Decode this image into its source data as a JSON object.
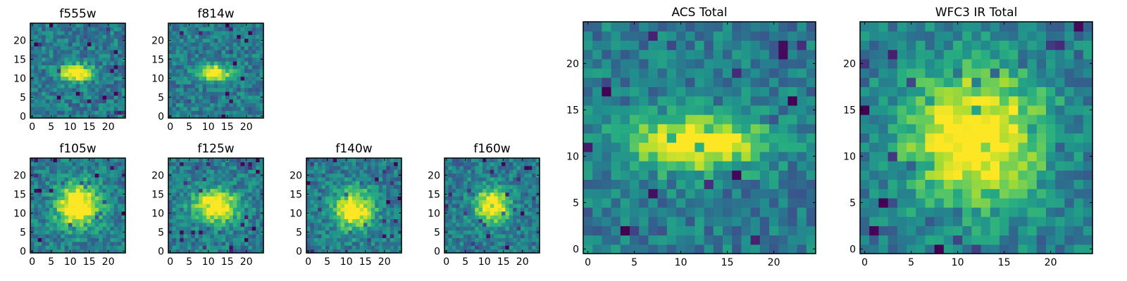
{
  "chart_data": [
    {
      "type": "heatmap",
      "title": "f555w",
      "grid_size": [
        25,
        25
      ],
      "xlim": [
        0,
        24
      ],
      "ylim": [
        0,
        24
      ],
      "xticks": [
        0,
        5,
        10,
        15,
        20
      ],
      "yticks": [
        0,
        5,
        10,
        15,
        20
      ],
      "source_center": [
        11.5,
        11.5
      ],
      "source_extent": [
        3,
        1.5
      ],
      "colormap": "viridis",
      "grid": false
    },
    {
      "type": "heatmap",
      "title": "f814w",
      "grid_size": [
        25,
        25
      ],
      "xlim": [
        0,
        24
      ],
      "ylim": [
        0,
        24
      ],
      "xticks": [
        0,
        5,
        10,
        15,
        20
      ],
      "yticks": [
        0,
        5,
        10,
        15,
        20
      ],
      "source_center": [
        11.5,
        11.5
      ],
      "source_extent": [
        3,
        1.5
      ],
      "colormap": "viridis",
      "grid": false
    },
    {
      "type": "heatmap",
      "title": "f105w",
      "grid_size": [
        25,
        25
      ],
      "xlim": [
        0,
        24
      ],
      "ylim": [
        0,
        24
      ],
      "xticks": [
        0,
        5,
        10,
        15,
        20
      ],
      "yticks": [
        0,
        5,
        10,
        15,
        20
      ],
      "source_center": [
        12,
        12
      ],
      "source_extent": [
        4,
        4
      ],
      "colormap": "viridis",
      "grid": false
    },
    {
      "type": "heatmap",
      "title": "f125w",
      "grid_size": [
        25,
        25
      ],
      "xlim": [
        0,
        24
      ],
      "ylim": [
        0,
        24
      ],
      "xticks": [
        0,
        5,
        10,
        15,
        20
      ],
      "yticks": [
        0,
        5,
        10,
        15,
        20
      ],
      "source_center": [
        12,
        12
      ],
      "source_extent": [
        4,
        3
      ],
      "colormap": "viridis",
      "grid": false
    },
    {
      "type": "heatmap",
      "title": "f140w",
      "grid_size": [
        25,
        25
      ],
      "xlim": [
        0,
        24
      ],
      "ylim": [
        0,
        24
      ],
      "xticks": [
        0,
        5,
        10,
        15,
        20
      ],
      "yticks": [
        0,
        5,
        10,
        15,
        20
      ],
      "source_center": [
        12,
        11
      ],
      "source_extent": [
        3.5,
        3.5
      ],
      "colormap": "viridis",
      "grid": false
    },
    {
      "type": "heatmap",
      "title": "f160w",
      "grid_size": [
        25,
        25
      ],
      "xlim": [
        0,
        24
      ],
      "ylim": [
        0,
        24
      ],
      "xticks": [
        0,
        5,
        10,
        15,
        20
      ],
      "yticks": [
        0,
        5,
        10,
        15,
        20
      ],
      "source_center": [
        12,
        12
      ],
      "source_extent": [
        3,
        3
      ],
      "colormap": "viridis",
      "grid": false
    },
    {
      "type": "heatmap",
      "title": "ACS Total",
      "grid_size": [
        25,
        25
      ],
      "xlim": [
        0,
        24
      ],
      "ylim": [
        0,
        24
      ],
      "xticks": [
        0,
        5,
        10,
        15,
        20
      ],
      "yticks": [
        0,
        5,
        10,
        15,
        20
      ],
      "source_center": [
        11.5,
        11.5
      ],
      "source_extent": [
        5,
        2
      ],
      "colormap": "viridis",
      "grid": false
    },
    {
      "type": "heatmap",
      "title": "WFC3 IR Total",
      "grid_size": [
        25,
        25
      ],
      "xlim": [
        0,
        24
      ],
      "ylim": [
        0,
        24
      ],
      "xticks": [
        0,
        5,
        10,
        15,
        20
      ],
      "yticks": [
        0,
        5,
        10,
        15,
        20
      ],
      "source_center": [
        12,
        12
      ],
      "source_extent": [
        5,
        5
      ],
      "colormap": "viridis",
      "grid": false
    }
  ]
}
